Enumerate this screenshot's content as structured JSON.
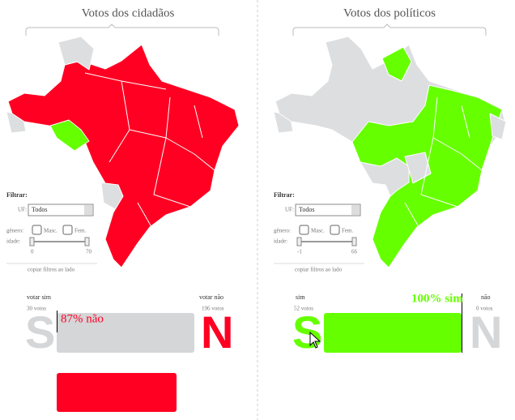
{
  "panels": [
    {
      "title": "Votos dos cidadãos",
      "filter": {
        "label": "Filtrar:",
        "uf_label": "UF:",
        "uf_value": "Todos",
        "genero_label": "gênero:",
        "masc": "Masc.",
        "fem": "Fem.",
        "idade_label": "idade:",
        "idade_min": "0",
        "idade_max": "70",
        "copy": "copiar filtros ao lado"
      },
      "result": {
        "yes_label": "votar sim",
        "yes_count": "30 votos",
        "yes_letter": "S",
        "no_label": "votar não",
        "no_count": "196 votos",
        "no_letter": "N",
        "bar_label": "87% não"
      }
    },
    {
      "title": "Votos dos políticos",
      "filter": {
        "label": "Filtrar:",
        "uf_label": "UF:",
        "uf_value": "Todos",
        "genero_label": "gênero:",
        "masc": "Masc.",
        "fem": "Fem.",
        "idade_label": "idade:",
        "idade_min": "-1",
        "idade_max": "66",
        "copy": "copiar filtros ao lado"
      },
      "result": {
        "yes_label": "sim",
        "yes_count": "52 votos",
        "yes_letter": "S",
        "no_label": "não",
        "no_count": "0 votos",
        "no_letter": "N",
        "bar_label": "100% sim"
      }
    }
  ]
}
